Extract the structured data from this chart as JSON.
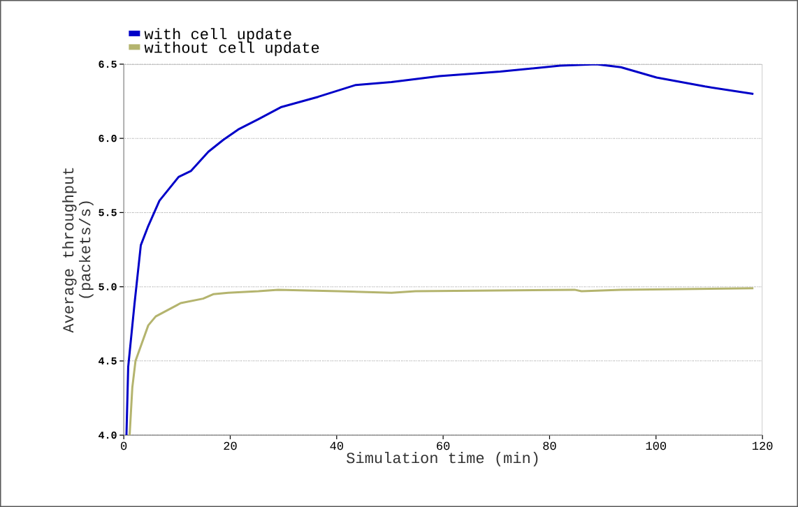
{
  "chart_data": {
    "type": "line",
    "xlabel": "Simulation time (min)",
    "ylabel": "Average throughput\n(packets/s)",
    "xlim": [
      0,
      120
    ],
    "ylim": [
      4.0,
      6.5
    ],
    "xticks": [
      0,
      20,
      40,
      60,
      80,
      100,
      120
    ],
    "yticks": [
      {
        "value": 4.0,
        "label": "4.0"
      },
      {
        "value": 4.5,
        "label": "4.5"
      },
      {
        "value": 5.0,
        "label": "5.0"
      },
      {
        "value": 5.5,
        "label": "5.5"
      },
      {
        "value": 6.0,
        "label": "6.0"
      },
      {
        "value": 6.5,
        "label": "6.5"
      }
    ],
    "grid": "y",
    "legend": "top left",
    "marker": "none",
    "line_style": "solid",
    "series": [
      {
        "name": "with cell update",
        "color": "#0000c8",
        "x": [
          0.5,
          0.83,
          2.0,
          3.2,
          4.6,
          6.7,
          10.3,
          12.6,
          15.9,
          18.7,
          21.5,
          25.3,
          29.5,
          36.5,
          43.6,
          50.3,
          59.3,
          70.7,
          82,
          88.8,
          93.4,
          100.1,
          109.2,
          118.3
        ],
        "values": [
          4.0,
          4.46,
          4.88,
          5.28,
          5.41,
          5.58,
          5.74,
          5.78,
          5.91,
          5.99,
          6.06,
          6.13,
          6.21,
          6.28,
          6.36,
          6.38,
          6.42,
          6.45,
          6.49,
          6.5,
          6.48,
          6.41,
          6.35,
          6.3
        ]
      },
      {
        "name": "without cell update",
        "color": "#b4b46e",
        "x": [
          1.1,
          1.6,
          2.2,
          4.6,
          6.0,
          10.7,
          14.9,
          16.8,
          19.6,
          25.3,
          29,
          40.3,
          50.3,
          54.8,
          84.7,
          86,
          93.4,
          118.3
        ],
        "values": [
          4.0,
          4.32,
          4.5,
          4.74,
          4.8,
          4.89,
          4.92,
          4.95,
          4.96,
          4.97,
          4.98,
          4.97,
          4.96,
          4.97,
          4.98,
          4.97,
          4.98,
          4.99
        ]
      }
    ]
  }
}
